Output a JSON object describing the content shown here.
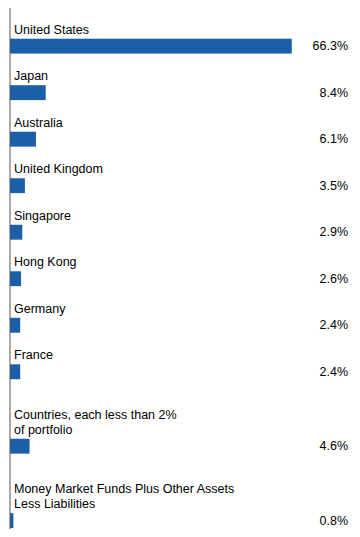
{
  "chart_data": {
    "type": "bar",
    "orientation": "horizontal",
    "categories": [
      "United States",
      "Japan",
      "Australia",
      "United Kingdom",
      "Singapore",
      "Hong Kong",
      "Germany",
      "France",
      "Countries, each less than 2%\nof portfolio",
      "Money Market Funds Plus Other Assets\nLess Liabilities"
    ],
    "values": [
      66.3,
      8.4,
      6.1,
      3.5,
      2.9,
      2.6,
      2.4,
      2.4,
      4.6,
      0.8
    ],
    "value_labels": [
      "66.3%",
      "8.4%",
      "6.1%",
      "3.5%",
      "2.9%",
      "2.6%",
      "2.4%",
      "2.4%",
      "4.6%",
      "0.8%"
    ],
    "color": "#1a5fa8",
    "xlim": [
      0,
      80
    ],
    "data_labels": true,
    "tick_labels": false,
    "grid": false
  }
}
